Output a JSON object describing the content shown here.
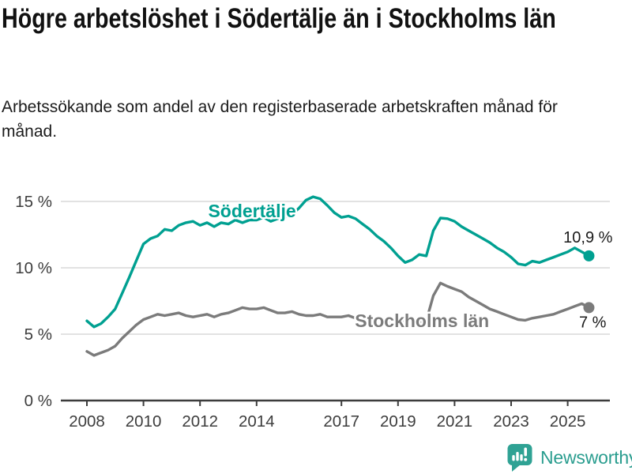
{
  "header": {
    "title": "Högre arbetslöshet i Södertälje än i Stockholms län",
    "subtitle": "Arbetssökande som andel av den registerbaserade arbetskraften månad för månad."
  },
  "chart_data": {
    "type": "line",
    "title": "Högre arbetslöshet i Södertälje än i Stockholms län",
    "subtitle": "Arbetssökande som andel av den registerbaserade arbetskraften månad för månad.",
    "unit": "%",
    "grid": "horizontal",
    "legend": "inline-labels",
    "grid_color": "#d9d9d9",
    "axis_color": "#3c3c3c",
    "tick_label_color": "#3d3d3d",
    "end_label_color": "#1a1a1a",
    "x_start": 2008.0,
    "x_step": 0.25,
    "xlim": [
      2008,
      2026.3
    ],
    "ylim": [
      0,
      16.5
    ],
    "xticks": [
      {
        "value": 2008,
        "label": "2008"
      },
      {
        "value": 2010,
        "label": "2010"
      },
      {
        "value": 2012,
        "label": "2012"
      },
      {
        "value": 2014,
        "label": "2014"
      },
      {
        "value": 2017,
        "label": "2017"
      },
      {
        "value": 2019,
        "label": "2019"
      },
      {
        "value": 2021,
        "label": "2021"
      },
      {
        "value": 2023,
        "label": "2023"
      },
      {
        "value": 2025,
        "label": "2025"
      }
    ],
    "yticks": [
      {
        "value": 0,
        "label": "0 %"
      },
      {
        "value": 5,
        "label": "5 %"
      },
      {
        "value": 10,
        "label": "10 %"
      },
      {
        "value": 15,
        "label": "15 %"
      }
    ],
    "series": [
      {
        "name": "Södertälje",
        "color": "#00a091",
        "end_label": "10,9 %",
        "end_value": 10.9,
        "end_label_side": "above",
        "label_anchor": {
          "x": 2013.84,
          "y": 13.8
        },
        "values": [
          6.0,
          5.55,
          5.8,
          6.3,
          6.9,
          8.1,
          9.3,
          10.55,
          11.8,
          12.2,
          12.4,
          12.9,
          12.8,
          13.2,
          13.4,
          13.5,
          13.2,
          13.4,
          13.1,
          13.4,
          13.3,
          13.6,
          13.4,
          13.6,
          13.6,
          13.8,
          13.5,
          13.7,
          13.8,
          14.0,
          14.5,
          15.1,
          15.35,
          15.2,
          14.7,
          14.15,
          13.8,
          13.9,
          13.7,
          13.3,
          12.9,
          12.4,
          12.0,
          11.5,
          10.9,
          10.4,
          10.6,
          11.0,
          10.9,
          12.8,
          13.75,
          13.7,
          13.5,
          13.1,
          12.8,
          12.5,
          12.2,
          11.9,
          11.5,
          11.2,
          10.8,
          10.3,
          10.2,
          10.5,
          10.4,
          10.6,
          10.8,
          11.0,
          11.2,
          11.5,
          11.2,
          10.9
        ]
      },
      {
        "name": "Stockholms län",
        "color": "#7b7b7b",
        "end_label": "7 %",
        "end_value": 7.0,
        "end_label_side": "below",
        "label_anchor": {
          "x": 2019.85,
          "y": 5.55
        },
        "values": [
          3.7,
          3.4,
          3.6,
          3.8,
          4.1,
          4.7,
          5.2,
          5.7,
          6.1,
          6.3,
          6.5,
          6.4,
          6.5,
          6.6,
          6.4,
          6.3,
          6.4,
          6.5,
          6.3,
          6.5,
          6.6,
          6.8,
          7.0,
          6.9,
          6.9,
          7.0,
          6.8,
          6.6,
          6.6,
          6.7,
          6.5,
          6.4,
          6.4,
          6.5,
          6.3,
          6.3,
          6.3,
          6.4,
          6.2,
          6.1,
          6.1,
          6.2,
          6.0,
          6.0,
          5.9,
          6.1,
          6.0,
          5.9,
          6.0,
          7.9,
          8.85,
          8.6,
          8.4,
          8.2,
          7.8,
          7.5,
          7.2,
          6.9,
          6.7,
          6.5,
          6.3,
          6.1,
          6.05,
          6.2,
          6.3,
          6.4,
          6.5,
          6.7,
          6.9,
          7.1,
          7.3,
          7.0
        ]
      }
    ]
  },
  "footer": {
    "brand": "Newsworthy",
    "brand_color": "#2a9d8f",
    "logo_color": "#2fa294",
    "logo_icon": "bar-chart-exclamation-icon"
  }
}
